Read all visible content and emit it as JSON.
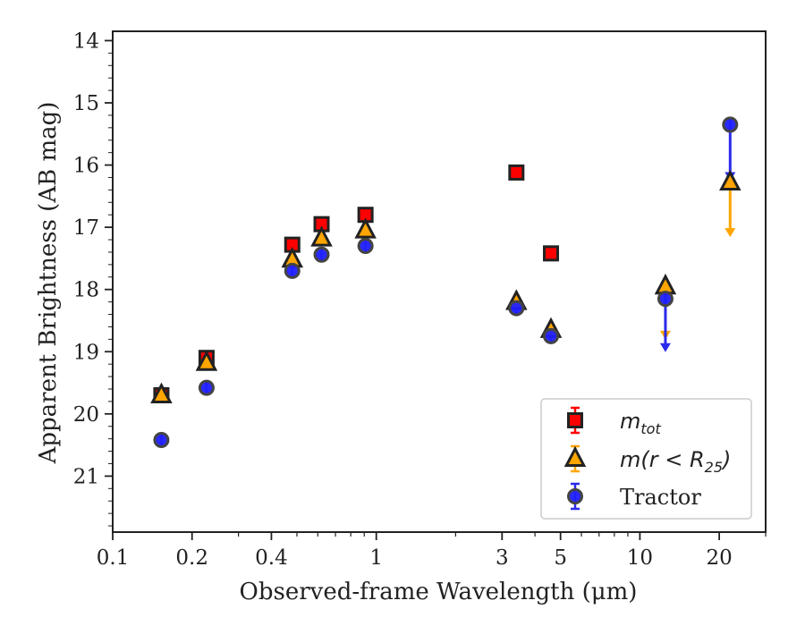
{
  "chart_data": {
    "type": "scatter",
    "xlabel": "Observed-frame Wavelength (μm)",
    "ylabel": "Apparent Brightness (AB mag)",
    "xscale": "log",
    "xlim": [
      0.1,
      30
    ],
    "ylim": [
      21.9,
      13.85
    ],
    "y_inverted": true,
    "xticks": [
      {
        "value": 0.1,
        "label": "0.1"
      },
      {
        "value": 0.2,
        "label": "0.2"
      },
      {
        "value": 0.4,
        "label": "0.4"
      },
      {
        "value": 1,
        "label": "1"
      },
      {
        "value": 3,
        "label": "3"
      },
      {
        "value": 5,
        "label": "5"
      },
      {
        "value": 10,
        "label": "10"
      },
      {
        "value": 20,
        "label": "20"
      }
    ],
    "yticks": [
      14,
      15,
      16,
      17,
      18,
      19,
      20,
      21
    ],
    "legend_position": "lower-right",
    "series": [
      {
        "name": "m_tot",
        "legend_label_main": "m",
        "legend_label_sub": "tot",
        "marker": "square",
        "color": "#ff0000",
        "edge_color": "#222222",
        "errorbar_color": "#ff0000",
        "points": [
          {
            "x": 0.153,
            "y": 19.7
          },
          {
            "x": 0.227,
            "y": 19.1
          },
          {
            "x": 0.48,
            "y": 17.28
          },
          {
            "x": 0.62,
            "y": 16.95
          },
          {
            "x": 0.91,
            "y": 16.8
          },
          {
            "x": 3.4,
            "y": 16.12
          },
          {
            "x": 4.6,
            "y": 17.42
          }
        ]
      },
      {
        "name": "m(r < R25)",
        "legend_label_main": "m(r < R",
        "legend_label_sub": "25",
        "legend_label_end": ")",
        "marker": "triangle",
        "color": "#ffa500",
        "edge_color": "#222222",
        "errorbar_color": "#ffa500",
        "points": [
          {
            "x": 0.153,
            "y": 19.7
          },
          {
            "x": 0.227,
            "y": 19.18
          },
          {
            "x": 0.48,
            "y": 17.52
          },
          {
            "x": 0.62,
            "y": 17.18
          },
          {
            "x": 0.91,
            "y": 17.05
          },
          {
            "x": 3.4,
            "y": 18.2
          },
          {
            "x": 4.6,
            "y": 18.65
          },
          {
            "x": 12.5,
            "y": 17.95,
            "upper_limit_to": 18.75
          },
          {
            "x": 22.0,
            "y": 16.28,
            "upper_limit_to": 17.1
          }
        ]
      },
      {
        "name": "Tractor",
        "legend_label_main": "Tractor",
        "marker": "circle",
        "color": "#1f1fff",
        "edge_color": "#444444",
        "errorbar_color": "#2a2aee",
        "points": [
          {
            "x": 0.153,
            "y": 20.42
          },
          {
            "x": 0.227,
            "y": 19.58
          },
          {
            "x": 0.48,
            "y": 17.7
          },
          {
            "x": 0.62,
            "y": 17.44
          },
          {
            "x": 0.91,
            "y": 17.3
          },
          {
            "x": 3.4,
            "y": 18.3
          },
          {
            "x": 4.6,
            "y": 18.75
          },
          {
            "x": 12.5,
            "y": 18.15,
            "upper_limit_to": 18.95
          },
          {
            "x": 22.0,
            "y": 15.35,
            "upper_limit_to": 16.2
          }
        ]
      }
    ]
  }
}
